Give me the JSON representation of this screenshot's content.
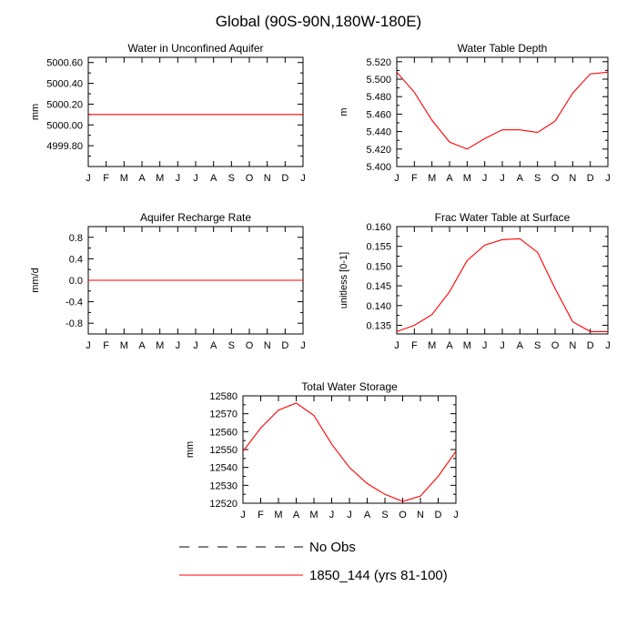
{
  "suptitle": "Global (90S-90N,180W-180E)",
  "colors": {
    "series": "#ff0000",
    "axis": "#000000",
    "obs": "#000000"
  },
  "legend": {
    "position": "bottom-center",
    "entries": [
      {
        "label": "No Obs",
        "style": "dashed",
        "color": "#000000"
      },
      {
        "label": "1850_144 (yrs 81-100)",
        "style": "solid",
        "color": "#ff0000"
      }
    ]
  },
  "chart_data": [
    {
      "type": "line",
      "title": "Water in Unconfined Aquifer",
      "xlabel": "",
      "ylabel": "mm",
      "categories": [
        "J",
        "F",
        "M",
        "A",
        "M",
        "J",
        "J",
        "A",
        "S",
        "O",
        "N",
        "D",
        "J"
      ],
      "ylim": [
        4999.6,
        5000.65
      ],
      "yticks": [
        4999.8,
        5000.0,
        5000.2,
        5000.4,
        5000.6
      ],
      "ytick_labels": [
        "4999.80",
        "5000.00",
        "5000.20",
        "5000.40",
        "5000.60"
      ],
      "series": [
        {
          "values": [
            5000.1,
            5000.1,
            5000.1,
            5000.1,
            5000.1,
            5000.1,
            5000.1,
            5000.1,
            5000.1,
            5000.1,
            5000.1,
            5000.1,
            5000.1
          ]
        }
      ]
    },
    {
      "type": "line",
      "title": "Water Table Depth",
      "xlabel": "",
      "ylabel": "m",
      "categories": [
        "J",
        "F",
        "M",
        "A",
        "M",
        "J",
        "J",
        "A",
        "S",
        "O",
        "N",
        "D",
        "J"
      ],
      "ylim": [
        5.4,
        5.525
      ],
      "yticks": [
        5.4,
        5.42,
        5.44,
        5.46,
        5.48,
        5.5,
        5.52
      ],
      "ytick_labels": [
        "5.400",
        "5.420",
        "5.440",
        "5.460",
        "5.480",
        "5.500",
        "5.520"
      ],
      "series": [
        {
          "values": [
            5.508,
            5.485,
            5.453,
            5.428,
            5.42,
            5.432,
            5.442,
            5.442,
            5.439,
            5.452,
            5.484,
            5.506,
            5.508
          ]
        }
      ]
    },
    {
      "type": "line",
      "title": "Aquifer Recharge Rate",
      "xlabel": "",
      "ylabel": "mm/d",
      "categories": [
        "J",
        "F",
        "M",
        "A",
        "M",
        "J",
        "J",
        "A",
        "S",
        "O",
        "N",
        "D",
        "J"
      ],
      "ylim": [
        -1.0,
        1.0
      ],
      "yticks": [
        -0.8,
        -0.4,
        0.0,
        0.4,
        0.8
      ],
      "ytick_labels": [
        "-0.8",
        "-0.4",
        "0.0",
        "0.4",
        "0.8"
      ],
      "series": [
        {
          "values": [
            0,
            0,
            0,
            0,
            0,
            0,
            0,
            0,
            0,
            0,
            0,
            0,
            0
          ]
        }
      ]
    },
    {
      "type": "line",
      "title": "Frac Water Table at Surface",
      "xlabel": "",
      "ylabel": "unitless [0-1]",
      "categories": [
        "J",
        "F",
        "M",
        "A",
        "M",
        "J",
        "J",
        "A",
        "S",
        "O",
        "N",
        "D",
        "J"
      ],
      "ylim": [
        0.1328,
        0.16
      ],
      "yticks": [
        0.135,
        0.14,
        0.145,
        0.15,
        0.155,
        0.16
      ],
      "ytick_labels": [
        "0.135",
        "0.140",
        "0.145",
        "0.150",
        "0.155",
        "0.160"
      ],
      "series": [
        {
          "values": [
            0.1334,
            0.135,
            0.1377,
            0.1435,
            0.1514,
            0.1553,
            0.1567,
            0.1569,
            0.1535,
            0.1443,
            0.1359,
            0.1334,
            0.1334
          ]
        }
      ]
    },
    {
      "type": "line",
      "title": "Total Water Storage",
      "xlabel": "",
      "ylabel": "mm",
      "categories": [
        "J",
        "F",
        "M",
        "A",
        "M",
        "J",
        "J",
        "A",
        "S",
        "O",
        "N",
        "D",
        "J"
      ],
      "ylim": [
        12520,
        12580
      ],
      "yticks": [
        12520,
        12530,
        12540,
        12550,
        12560,
        12570,
        12580
      ],
      "ytick_labels": [
        "12520",
        "12530",
        "12540",
        "12550",
        "12560",
        "12570",
        "12580"
      ],
      "series": [
        {
          "values": [
            12549,
            12562,
            12572,
            12576,
            12569,
            12553,
            12540,
            12531,
            12525,
            12521,
            12524,
            12535,
            12549
          ]
        }
      ]
    }
  ]
}
